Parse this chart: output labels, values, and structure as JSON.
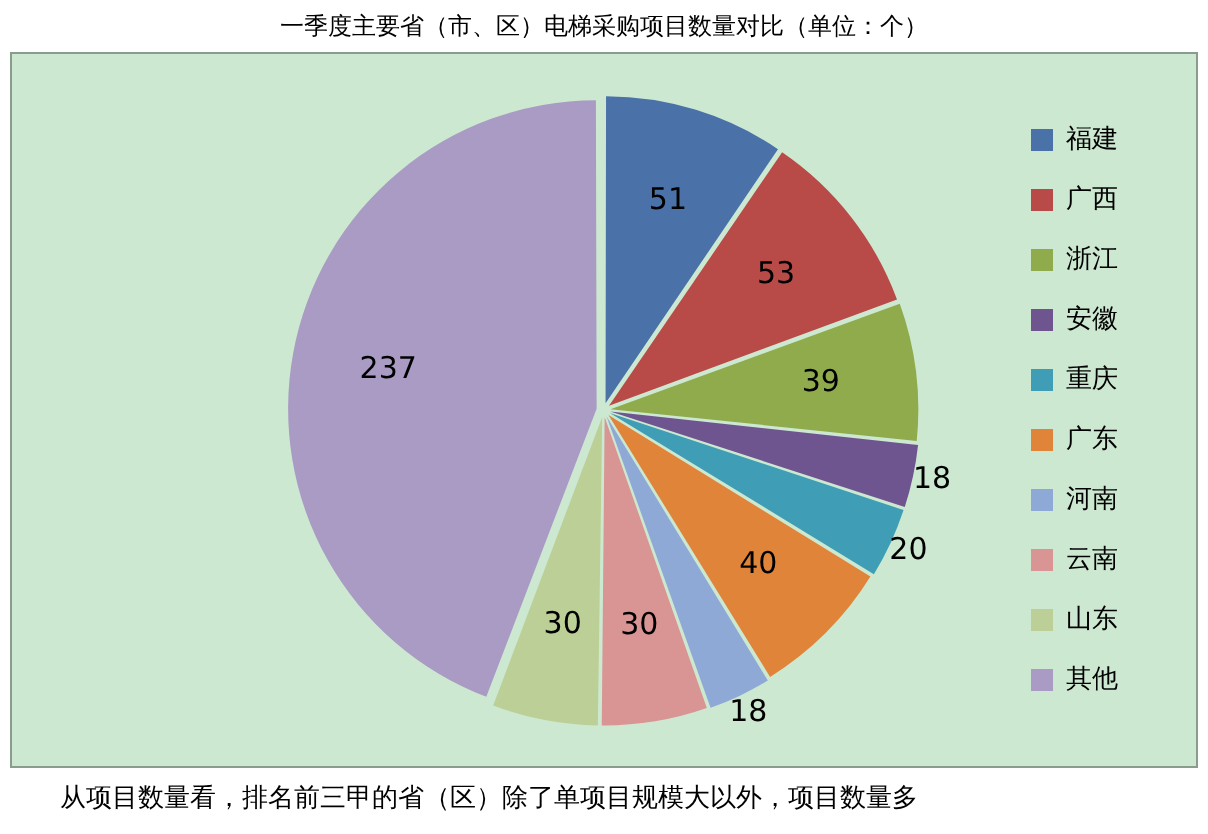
{
  "chart_data": {
    "type": "pie",
    "title": "一季度主要省（市、区）电梯采购项目数量对比（单位：个）",
    "categories": [
      "福建",
      "广西",
      "浙江",
      "安徽",
      "重庆",
      "广东",
      "河南",
      "云南",
      "山东",
      "其他"
    ],
    "values": [
      51,
      53,
      39,
      18,
      20,
      40,
      18,
      30,
      30,
      237
    ],
    "colors": [
      "#4a72a8",
      "#b84a47",
      "#8fab4b",
      "#6f558f",
      "#3f9db5",
      "#e0843a",
      "#8fa9d6",
      "#d99593",
      "#bccf96",
      "#a99bc4"
    ],
    "data_labels": true,
    "legend": "right",
    "annotations": [
      "从项目数量看，排名前三甲的省（区）除了单项目规模大以外，项目数量多"
    ]
  }
}
